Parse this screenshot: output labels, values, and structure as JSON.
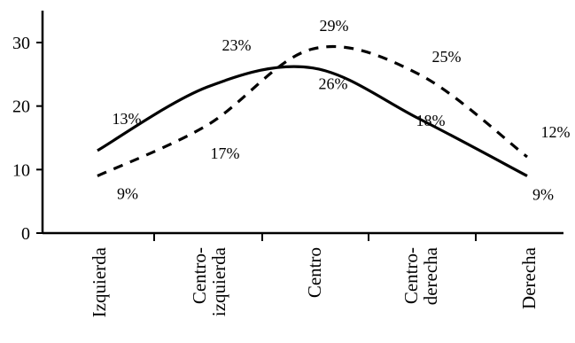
{
  "chart_data": {
    "type": "line",
    "title": "",
    "xlabel": "",
    "ylabel": "",
    "categories": [
      "Izquierda",
      "Centro-\nizquierda",
      "Centro",
      "Centro-\nderecha",
      "Derecha"
    ],
    "ylim": [
      0,
      30
    ],
    "yticks": [
      0,
      10,
      20,
      30
    ],
    "grid": false,
    "legend": "none",
    "series": [
      {
        "style": "solid",
        "color": "#000000",
        "values": [
          13,
          23,
          26,
          18,
          9
        ],
        "labels": [
          "13%",
          "23%",
          "26%",
          "18%",
          "9%"
        ]
      },
      {
        "style": "dashed",
        "color": "#000000",
        "values": [
          9,
          17,
          29,
          25,
          12
        ],
        "labels": [
          "9%",
          "17%",
          "29%",
          "25%",
          "12%"
        ]
      }
    ]
  }
}
